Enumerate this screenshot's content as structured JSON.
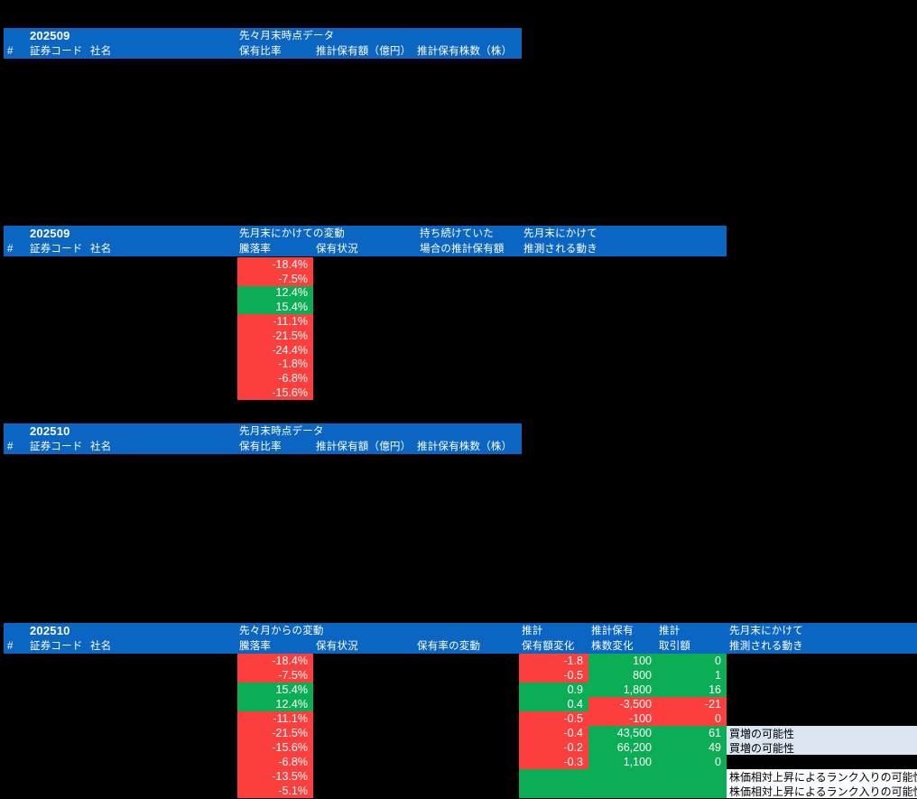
{
  "colors": {
    "header_bg": "#0a66c2",
    "negative_cell": "#fc3f3d",
    "positive_cell": "#0cae55",
    "note_blue_bg": "#dce6f2",
    "note_white_bg": "#fbfcfe",
    "canvas_bg": "#000000",
    "header_text": "#ffffff",
    "cell_text": "#ffffff",
    "note_text": "#000000"
  },
  "sections": [
    {
      "id": "s1",
      "kind": "snapshot",
      "period": "202509",
      "group_label": "先々月末時点データ",
      "header_row1": [
        "202509",
        "先々月末時点データ"
      ],
      "header_row2": [
        "#",
        "証券コード",
        "社名",
        "保有比率",
        "推計保有額（億円）",
        "推計保有株数（株）"
      ]
    },
    {
      "id": "s2",
      "kind": "change",
      "period": "202509",
      "group_label": "先月末にかけての変動",
      "header_row1": [
        "202509",
        "先月末にかけての変動",
        "持ち続けていた",
        "先月末にかけて"
      ],
      "header_row2": [
        "#",
        "証券コード",
        "社名",
        "騰落率",
        "保有状況",
        "場合の推計保有額",
        "推測される動き"
      ],
      "change_rows": [
        {
          "v": "-18.4%",
          "t": "neg"
        },
        {
          "v": "-7.5%",
          "t": "neg"
        },
        {
          "v": "12.4%",
          "t": "pos"
        },
        {
          "v": "15.4%",
          "t": "pos"
        },
        {
          "v": "-11.1%",
          "t": "neg"
        },
        {
          "v": "-21.5%",
          "t": "neg"
        },
        {
          "v": "-24.4%",
          "t": "neg"
        },
        {
          "v": "-1.8%",
          "t": "neg"
        },
        {
          "v": "-6.8%",
          "t": "neg"
        },
        {
          "v": "-15.6%",
          "t": "neg"
        }
      ]
    },
    {
      "id": "s3",
      "kind": "snapshot",
      "period": "202510",
      "group_label": "先月末時点データ",
      "header_row1": [
        "202510",
        "先月末時点データ"
      ],
      "header_row2": [
        "#",
        "証券コード",
        "社名",
        "保有比率",
        "推計保有額（億円）",
        "推計保有株数（株）"
      ]
    },
    {
      "id": "s4",
      "kind": "change-detail",
      "period": "202510",
      "group_label": "先々月からの変動",
      "header_row1": [
        "202510",
        "先々月からの変動",
        "推計",
        "推計保有",
        "推計",
        "先月末にかけて"
      ],
      "header_row2": [
        "#",
        "証券コード",
        "社名",
        "騰落率",
        "保有状況",
        "保有率の変動",
        "保有額変化",
        "株数変化",
        "取引額",
        "推測される動き"
      ],
      "rows": [
        {
          "change": {
            "v": "-18.4%",
            "t": "neg"
          },
          "amount": {
            "v": "-1.8",
            "t": "neg"
          },
          "shares": {
            "v": "100",
            "t": "pos"
          },
          "trade": {
            "v": "0",
            "t": "pos"
          },
          "note": {
            "v": "",
            "t": ""
          }
        },
        {
          "change": {
            "v": "-7.5%",
            "t": "neg"
          },
          "amount": {
            "v": "-0.5",
            "t": "neg"
          },
          "shares": {
            "v": "800",
            "t": "pos"
          },
          "trade": {
            "v": "1",
            "t": "pos"
          },
          "note": {
            "v": "",
            "t": ""
          }
        },
        {
          "change": {
            "v": "15.4%",
            "t": "pos"
          },
          "amount": {
            "v": "0.9",
            "t": "pos"
          },
          "shares": {
            "v": "1,800",
            "t": "pos"
          },
          "trade": {
            "v": "16",
            "t": "pos"
          },
          "note": {
            "v": "",
            "t": ""
          }
        },
        {
          "change": {
            "v": "12.4%",
            "t": "pos"
          },
          "amount": {
            "v": "0.4",
            "t": "pos"
          },
          "shares": {
            "v": "-3,500",
            "t": "neg"
          },
          "trade": {
            "v": "-21",
            "t": "neg"
          },
          "note": {
            "v": "",
            "t": ""
          }
        },
        {
          "change": {
            "v": "-11.1%",
            "t": "neg"
          },
          "amount": {
            "v": "-0.5",
            "t": "neg"
          },
          "shares": {
            "v": "-100",
            "t": "neg"
          },
          "trade": {
            "v": "0",
            "t": "neg"
          },
          "note": {
            "v": "",
            "t": ""
          }
        },
        {
          "change": {
            "v": "-21.5%",
            "t": "neg"
          },
          "amount": {
            "v": "-0.4",
            "t": "neg"
          },
          "shares": {
            "v": "43,500",
            "t": "pos"
          },
          "trade": {
            "v": "61",
            "t": "pos"
          },
          "note": {
            "v": "買増の可能性",
            "t": "blue"
          }
        },
        {
          "change": {
            "v": "-15.6%",
            "t": "neg"
          },
          "amount": {
            "v": "-0.2",
            "t": "neg"
          },
          "shares": {
            "v": "66,200",
            "t": "pos"
          },
          "trade": {
            "v": "49",
            "t": "pos"
          },
          "note": {
            "v": "買増の可能性",
            "t": "blue"
          }
        },
        {
          "change": {
            "v": "-6.8%",
            "t": "neg"
          },
          "amount": {
            "v": "-0.3",
            "t": "neg"
          },
          "shares": {
            "v": "1,100",
            "t": "pos"
          },
          "trade": {
            "v": "0",
            "t": "pos"
          },
          "note": {
            "v": "",
            "t": ""
          }
        },
        {
          "change": {
            "v": "-13.5%",
            "t": "neg"
          },
          "amount": {
            "v": "",
            "t": "pos"
          },
          "shares": {
            "v": "",
            "t": "pos"
          },
          "trade": {
            "v": "",
            "t": "pos"
          },
          "note": {
            "v": "株価相対上昇によるランク入りの可能性",
            "t": "white"
          }
        },
        {
          "change": {
            "v": "-5.1%",
            "t": "neg"
          },
          "amount": {
            "v": "",
            "t": "pos"
          },
          "shares": {
            "v": "",
            "t": "pos"
          },
          "trade": {
            "v": "",
            "t": "pos"
          },
          "note": {
            "v": "株価相対上昇によるランク入りの可能性",
            "t": "white"
          }
        }
      ]
    }
  ]
}
